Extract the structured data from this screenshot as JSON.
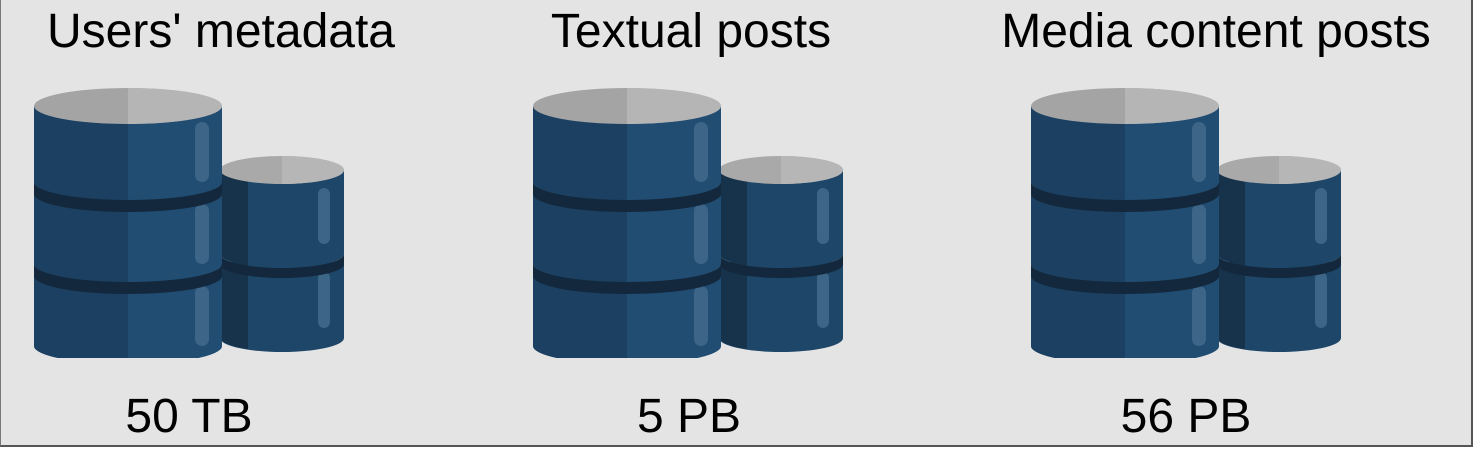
{
  "storage": [
    {
      "title": "Users' metadata",
      "size": "50 TB",
      "icon": "database-icon"
    },
    {
      "title": "Textual posts",
      "size": "5 PB",
      "icon": "database-icon"
    },
    {
      "title": "Media content posts",
      "size": "56 PB",
      "icon": "database-icon"
    }
  ],
  "colors": {
    "background": "#e4e4e4",
    "cylinder_body": "#1e4668",
    "cylinder_shade": "#17324b",
    "cylinder_top": "#a7a7a7"
  }
}
